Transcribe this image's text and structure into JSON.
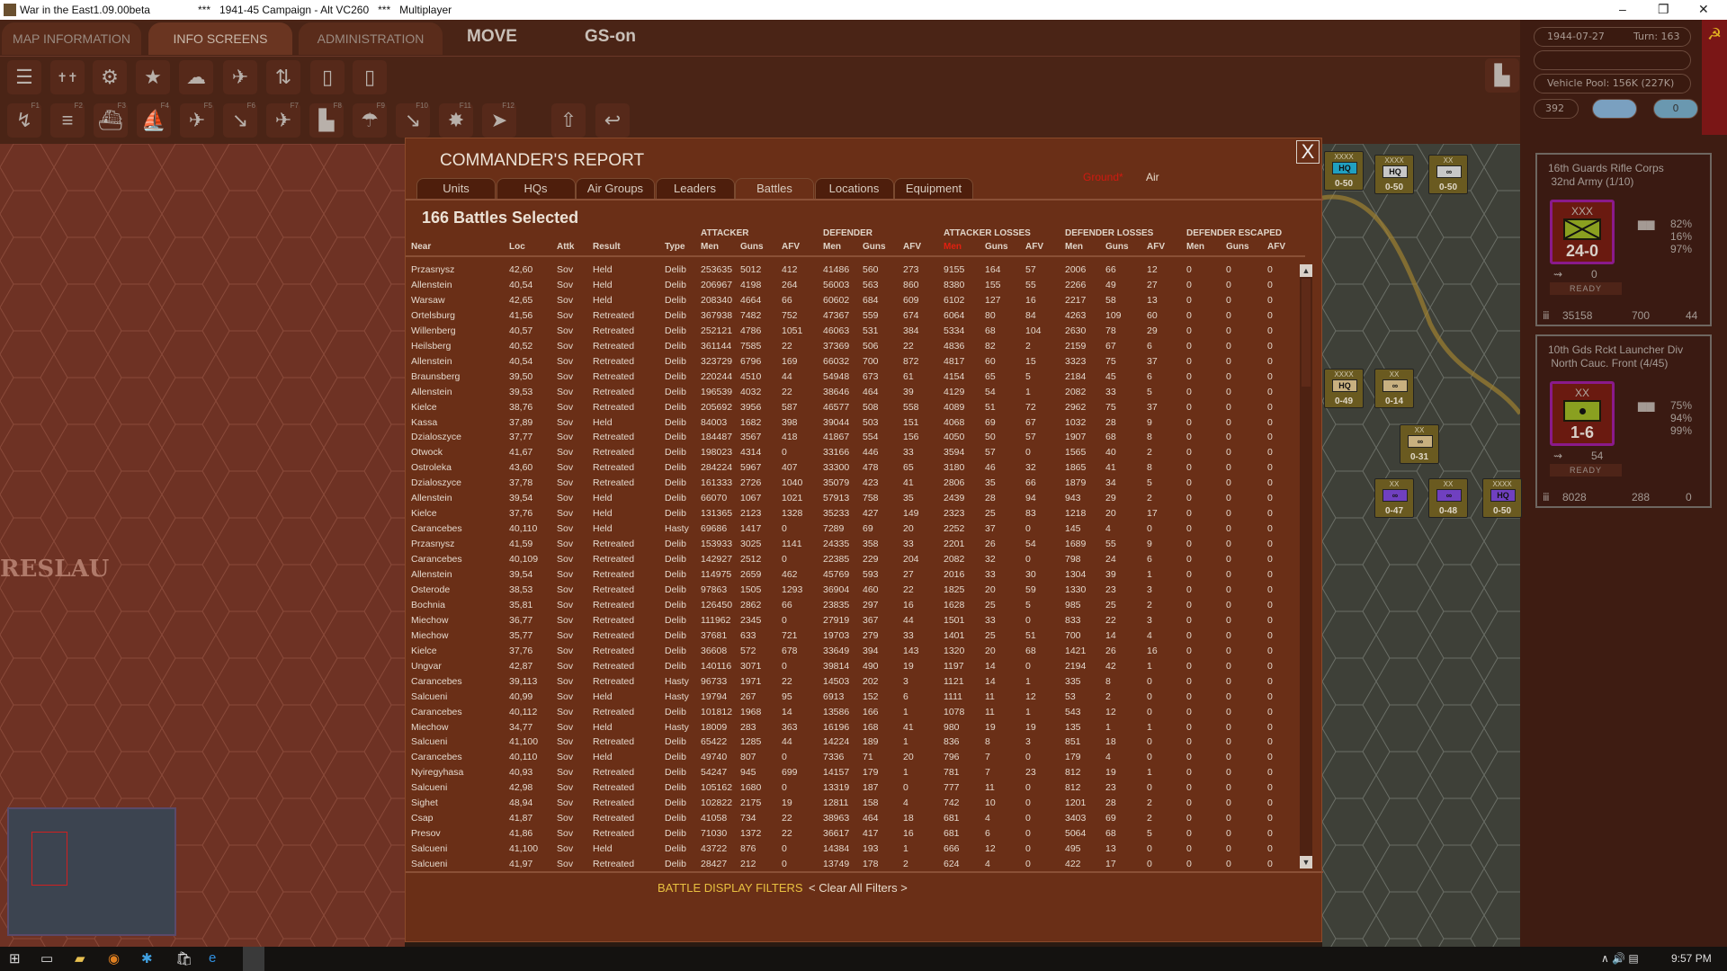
{
  "window": {
    "app_title": "War in the East1.09.00beta",
    "scenario_title": "***   1941-45 Campaign - Alt VC260   ***   Multiplayer"
  },
  "menu": {
    "tabs": [
      "MAP INFORMATION",
      "INFO SCREENS",
      "ADMINISTRATION"
    ],
    "phase": "MOVE",
    "gs": "GS-on"
  },
  "toolbar": {
    "row1_icons": [
      "unit-list-icon",
      "leaders-icon",
      "production-icon",
      "victory-star-icon",
      "weather-icon",
      "air-combat-icon",
      "air-transfer-icon",
      "report-flag-icon",
      "report-blank-icon"
    ],
    "row2": [
      {
        "icon": "movement-icon",
        "key": "F1"
      },
      {
        "icon": "rail-icon",
        "key": "F2"
      },
      {
        "icon": "naval-transport-icon",
        "key": "F3"
      },
      {
        "icon": "amphibious-icon",
        "key": "F4"
      },
      {
        "icon": "air-recon-icon",
        "key": "F5"
      },
      {
        "icon": "air-strike-icon",
        "key": "F6"
      },
      {
        "icon": "airfield-bomb-icon",
        "key": "F7"
      },
      {
        "icon": "city-bomb-icon",
        "key": "F8"
      },
      {
        "icon": "paradrop-icon",
        "key": "F9"
      },
      {
        "icon": "air-transport-icon",
        "key": "F10"
      },
      {
        "icon": "combat-icon",
        "key": "F11"
      },
      {
        "icon": "end-turn-icon",
        "key": "F12"
      }
    ]
  },
  "status": {
    "date": "1944-07-27",
    "turn": "Turn: 163",
    "vehicle_pool": "Vehicle Pool: 156K (227K)",
    "admin_points": "392",
    "counter": "0"
  },
  "unit_cards": [
    {
      "name": "16th Guards Rifle Corps",
      "parent": "32nd Army (1/10)",
      "size": "XXX",
      "strength": "24-0",
      "moves": "0",
      "status": "READY",
      "pct": [
        "82%",
        "16%",
        "97%"
      ],
      "men": "35158",
      "guns": "700",
      "afv": "44"
    },
    {
      "name": "10th Gds Rckt Launcher Div",
      "parent": "North Cauc. Front (4/45)",
      "size": "XX",
      "strength": "1-6",
      "moves": "54",
      "status": "READY",
      "pct": [
        "75%",
        "94%",
        "99%"
      ],
      "men": "8028",
      "guns": "288",
      "afv": "0"
    }
  ],
  "map": {
    "city_label": "RESLAU",
    "units": [
      {
        "size": "XXXX",
        "type": "HQ",
        "str": "0-50",
        "color": "#20a0c0"
      },
      {
        "size": "XXXX",
        "type": "HQ",
        "str": "0-50",
        "color": "#c8c8c8"
      },
      {
        "size": "XX",
        "type": "∞",
        "str": "0-50",
        "color": "#c8c8c8"
      },
      {
        "size": "XXXX",
        "type": "HQ",
        "str": "0-49",
        "color": "#c8b080"
      },
      {
        "size": "XX",
        "type": "∞",
        "str": "0-14",
        "color": "#c8b080"
      },
      {
        "size": "XX",
        "type": "∞",
        "str": "0-31",
        "color": "#c8b080"
      },
      {
        "size": "XX",
        "type": "∞",
        "str": "0-47",
        "color": "#7040c0"
      },
      {
        "size": "XX",
        "type": "∞",
        "str": "0-48",
        "color": "#7040c0"
      },
      {
        "size": "XXXX",
        "type": "HQ",
        "str": "0-50",
        "color": "#7040c0"
      }
    ]
  },
  "dialog": {
    "title": "COMMANDER'S REPORT",
    "mode_ground": "Ground*",
    "mode_air": "Air",
    "close": "X",
    "tabs": [
      "Units",
      "HQs",
      "Air Groups",
      "Leaders",
      "Battles",
      "Locations",
      "Equipment"
    ],
    "active_tab": "Battles",
    "selected": "166 Battles Selected",
    "group_headers": [
      "ATTACKER",
      "DEFENDER",
      "ATTACKER LOSSES",
      "DEFENDER LOSSES",
      "DEFENDER ESCAPED"
    ],
    "columns": [
      "Near",
      "Loc",
      "Attk",
      "Result",
      "Type",
      "Men",
      "Guns",
      "AFV",
      "Men",
      "Guns",
      "AFV",
      "Men",
      "Guns",
      "AFV",
      "Men",
      "Guns",
      "AFV",
      "Men",
      "Guns",
      "AFV"
    ],
    "sort_column_color": "#e02010",
    "rows": [
      [
        "Przasnysz",
        "42,60",
        "Sov",
        "Held",
        "Delib",
        "253635",
        "5012",
        "412",
        "41486",
        "560",
        "273",
        "9155",
        "164",
        "57",
        "2006",
        "66",
        "12",
        "0",
        "0",
        "0"
      ],
      [
        "Allenstein",
        "40,54",
        "Sov",
        "Held",
        "Delib",
        "206967",
        "4198",
        "264",
        "56003",
        "563",
        "860",
        "8380",
        "155",
        "55",
        "2266",
        "49",
        "27",
        "0",
        "0",
        "0"
      ],
      [
        "Warsaw",
        "42,65",
        "Sov",
        "Held",
        "Delib",
        "208340",
        "4664",
        "66",
        "60602",
        "684",
        "609",
        "6102",
        "127",
        "16",
        "2217",
        "58",
        "13",
        "0",
        "0",
        "0"
      ],
      [
        "Ortelsburg",
        "41,56",
        "Sov",
        "Retreated",
        "Delib",
        "367938",
        "7482",
        "752",
        "47367",
        "559",
        "674",
        "6064",
        "80",
        "84",
        "4263",
        "109",
        "60",
        "0",
        "0",
        "0"
      ],
      [
        "Willenberg",
        "40,57",
        "Sov",
        "Retreated",
        "Delib",
        "252121",
        "4786",
        "1051",
        "46063",
        "531",
        "384",
        "5334",
        "68",
        "104",
        "2630",
        "78",
        "29",
        "0",
        "0",
        "0"
      ],
      [
        "Heilsberg",
        "40,52",
        "Sov",
        "Retreated",
        "Delib",
        "361144",
        "7585",
        "22",
        "37369",
        "506",
        "22",
        "4836",
        "82",
        "2",
        "2159",
        "67",
        "6",
        "0",
        "0",
        "0"
      ],
      [
        "Allenstein",
        "40,54",
        "Sov",
        "Retreated",
        "Delib",
        "323729",
        "6796",
        "169",
        "66032",
        "700",
        "872",
        "4817",
        "60",
        "15",
        "3323",
        "75",
        "37",
        "0",
        "0",
        "0"
      ],
      [
        "Braunsberg",
        "39,50",
        "Sov",
        "Retreated",
        "Delib",
        "220244",
        "4510",
        "44",
        "54948",
        "673",
        "61",
        "4154",
        "65",
        "5",
        "2184",
        "45",
        "6",
        "0",
        "0",
        "0"
      ],
      [
        "Allenstein",
        "39,53",
        "Sov",
        "Retreated",
        "Delib",
        "196539",
        "4032",
        "22",
        "38646",
        "464",
        "39",
        "4129",
        "54",
        "1",
        "2082",
        "33",
        "5",
        "0",
        "0",
        "0"
      ],
      [
        "Kielce",
        "38,76",
        "Sov",
        "Retreated",
        "Delib",
        "205692",
        "3956",
        "587",
        "46577",
        "508",
        "558",
        "4089",
        "51",
        "72",
        "2962",
        "75",
        "37",
        "0",
        "0",
        "0"
      ],
      [
        "Kassa",
        "37,89",
        "Sov",
        "Held",
        "Delib",
        "84003",
        "1682",
        "398",
        "39044",
        "503",
        "151",
        "4068",
        "69",
        "67",
        "1032",
        "28",
        "9",
        "0",
        "0",
        "0"
      ],
      [
        "Dzialoszyce",
        "37,77",
        "Sov",
        "Retreated",
        "Delib",
        "184487",
        "3567",
        "418",
        "41867",
        "554",
        "156",
        "4050",
        "50",
        "57",
        "1907",
        "68",
        "8",
        "0",
        "0",
        "0"
      ],
      [
        "Otwock",
        "41,67",
        "Sov",
        "Retreated",
        "Delib",
        "198023",
        "4314",
        "0",
        "33166",
        "446",
        "33",
        "3594",
        "57",
        "0",
        "1565",
        "40",
        "2",
        "0",
        "0",
        "0"
      ],
      [
        "Ostroleka",
        "43,60",
        "Sov",
        "Retreated",
        "Delib",
        "284224",
        "5967",
        "407",
        "33300",
        "478",
        "65",
        "3180",
        "46",
        "32",
        "1865",
        "41",
        "8",
        "0",
        "0",
        "0"
      ],
      [
        "Dzialoszyce",
        "37,78",
        "Sov",
        "Retreated",
        "Delib",
        "161333",
        "2726",
        "1040",
        "35079",
        "423",
        "41",
        "2806",
        "35",
        "66",
        "1879",
        "34",
        "5",
        "0",
        "0",
        "0"
      ],
      [
        "Allenstein",
        "39,54",
        "Sov",
        "Held",
        "Delib",
        "66070",
        "1067",
        "1021",
        "57913",
        "758",
        "35",
        "2439",
        "28",
        "94",
        "943",
        "29",
        "2",
        "0",
        "0",
        "0"
      ],
      [
        "Kielce",
        "37,76",
        "Sov",
        "Held",
        "Delib",
        "131365",
        "2123",
        "1328",
        "35233",
        "427",
        "149",
        "2323",
        "25",
        "83",
        "1218",
        "20",
        "17",
        "0",
        "0",
        "0"
      ],
      [
        "Carancebes",
        "40,110",
        "Sov",
        "Held",
        "Hasty",
        "69686",
        "1417",
        "0",
        "7289",
        "69",
        "20",
        "2252",
        "37",
        "0",
        "145",
        "4",
        "0",
        "0",
        "0",
        "0"
      ],
      [
        "Przasnysz",
        "41,59",
        "Sov",
        "Retreated",
        "Delib",
        "153933",
        "3025",
        "1141",
        "24335",
        "358",
        "33",
        "2201",
        "26",
        "54",
        "1689",
        "55",
        "9",
        "0",
        "0",
        "0"
      ],
      [
        "Carancebes",
        "40,109",
        "Sov",
        "Retreated",
        "Delib",
        "142927",
        "2512",
        "0",
        "22385",
        "229",
        "204",
        "2082",
        "32",
        "0",
        "798",
        "24",
        "6",
        "0",
        "0",
        "0"
      ],
      [
        "Allenstein",
        "39,54",
        "Sov",
        "Retreated",
        "Delib",
        "114975",
        "2659",
        "462",
        "45769",
        "593",
        "27",
        "2016",
        "33",
        "30",
        "1304",
        "39",
        "1",
        "0",
        "0",
        "0"
      ],
      [
        "Osterode",
        "38,53",
        "Sov",
        "Retreated",
        "Delib",
        "97863",
        "1505",
        "1293",
        "36904",
        "460",
        "22",
        "1825",
        "20",
        "59",
        "1330",
        "23",
        "3",
        "0",
        "0",
        "0"
      ],
      [
        "Bochnia",
        "35,81",
        "Sov",
        "Retreated",
        "Delib",
        "126450",
        "2862",
        "66",
        "23835",
        "297",
        "16",
        "1628",
        "25",
        "5",
        "985",
        "25",
        "2",
        "0",
        "0",
        "0"
      ],
      [
        "Miechow",
        "36,77",
        "Sov",
        "Retreated",
        "Delib",
        "111962",
        "2345",
        "0",
        "27919",
        "367",
        "44",
        "1501",
        "33",
        "0",
        "833",
        "22",
        "3",
        "0",
        "0",
        "0"
      ],
      [
        "Miechow",
        "35,77",
        "Sov",
        "Retreated",
        "Delib",
        "37681",
        "633",
        "721",
        "19703",
        "279",
        "33",
        "1401",
        "25",
        "51",
        "700",
        "14",
        "4",
        "0",
        "0",
        "0"
      ],
      [
        "Kielce",
        "37,76",
        "Sov",
        "Retreated",
        "Delib",
        "36608",
        "572",
        "678",
        "33649",
        "394",
        "143",
        "1320",
        "20",
        "68",
        "1421",
        "26",
        "16",
        "0",
        "0",
        "0"
      ],
      [
        "Ungvar",
        "42,87",
        "Sov",
        "Retreated",
        "Delib",
        "140116",
        "3071",
        "0",
        "39814",
        "490",
        "19",
        "1197",
        "14",
        "0",
        "2194",
        "42",
        "1",
        "0",
        "0",
        "0"
      ],
      [
        "Carancebes",
        "39,113",
        "Sov",
        "Retreated",
        "Hasty",
        "96733",
        "1971",
        "22",
        "14503",
        "202",
        "3",
        "1121",
        "14",
        "1",
        "335",
        "8",
        "0",
        "0",
        "0",
        "0"
      ],
      [
        "Salcueni",
        "40,99",
        "Sov",
        "Held",
        "Hasty",
        "19794",
        "267",
        "95",
        "6913",
        "152",
        "6",
        "1111",
        "11",
        "12",
        "53",
        "2",
        "0",
        "0",
        "0",
        "0"
      ],
      [
        "Carancebes",
        "40,112",
        "Sov",
        "Retreated",
        "Delib",
        "101812",
        "1968",
        "14",
        "13586",
        "166",
        "1",
        "1078",
        "11",
        "1",
        "543",
        "12",
        "0",
        "0",
        "0",
        "0"
      ],
      [
        "Miechow",
        "34,77",
        "Sov",
        "Held",
        "Hasty",
        "18009",
        "283",
        "363",
        "16196",
        "168",
        "41",
        "980",
        "19",
        "19",
        "135",
        "1",
        "1",
        "0",
        "0",
        "0"
      ],
      [
        "Salcueni",
        "41,100",
        "Sov",
        "Retreated",
        "Delib",
        "65422",
        "1285",
        "44",
        "14224",
        "189",
        "1",
        "836",
        "8",
        "3",
        "851",
        "18",
        "0",
        "0",
        "0",
        "0"
      ],
      [
        "Carancebes",
        "40,110",
        "Sov",
        "Held",
        "Delib",
        "49740",
        "807",
        "0",
        "7336",
        "71",
        "20",
        "796",
        "7",
        "0",
        "179",
        "4",
        "0",
        "0",
        "0",
        "0"
      ],
      [
        "Nyiregyhasa",
        "40,93",
        "Sov",
        "Retreated",
        "Delib",
        "54247",
        "945",
        "699",
        "14157",
        "179",
        "1",
        "781",
        "7",
        "23",
        "812",
        "19",
        "1",
        "0",
        "0",
        "0"
      ],
      [
        "Salcueni",
        "42,98",
        "Sov",
        "Retreated",
        "Delib",
        "105162",
        "1680",
        "0",
        "13319",
        "187",
        "0",
        "777",
        "11",
        "0",
        "812",
        "23",
        "0",
        "0",
        "0",
        "0"
      ],
      [
        "Sighet",
        "48,94",
        "Sov",
        "Retreated",
        "Delib",
        "102822",
        "2175",
        "19",
        "12811",
        "158",
        "4",
        "742",
        "10",
        "0",
        "1201",
        "28",
        "2",
        "0",
        "0",
        "0"
      ],
      [
        "Csap",
        "41,87",
        "Sov",
        "Retreated",
        "Delib",
        "41058",
        "734",
        "22",
        "38963",
        "464",
        "18",
        "681",
        "4",
        "0",
        "3403",
        "69",
        "2",
        "0",
        "0",
        "0"
      ],
      [
        "Presov",
        "41,86",
        "Sov",
        "Retreated",
        "Delib",
        "71030",
        "1372",
        "22",
        "36617",
        "417",
        "16",
        "681",
        "6",
        "0",
        "5064",
        "68",
        "5",
        "0",
        "0",
        "0"
      ],
      [
        "Salcueni",
        "41,100",
        "Sov",
        "Held",
        "Delib",
        "43722",
        "876",
        "0",
        "14384",
        "193",
        "1",
        "666",
        "12",
        "0",
        "495",
        "13",
        "0",
        "0",
        "0",
        "0"
      ],
      [
        "Salcueni",
        "41,97",
        "Sov",
        "Retreated",
        "Delib",
        "28427",
        "212",
        "0",
        "13749",
        "178",
        "2",
        "624",
        "4",
        "0",
        "422",
        "17",
        "0",
        "0",
        "0",
        "0"
      ]
    ],
    "filters_label": "BATTLE DISPLAY FILTERS",
    "clear_filters": "< Clear All Filters >"
  },
  "taskbar": {
    "time": "9:57 PM"
  }
}
